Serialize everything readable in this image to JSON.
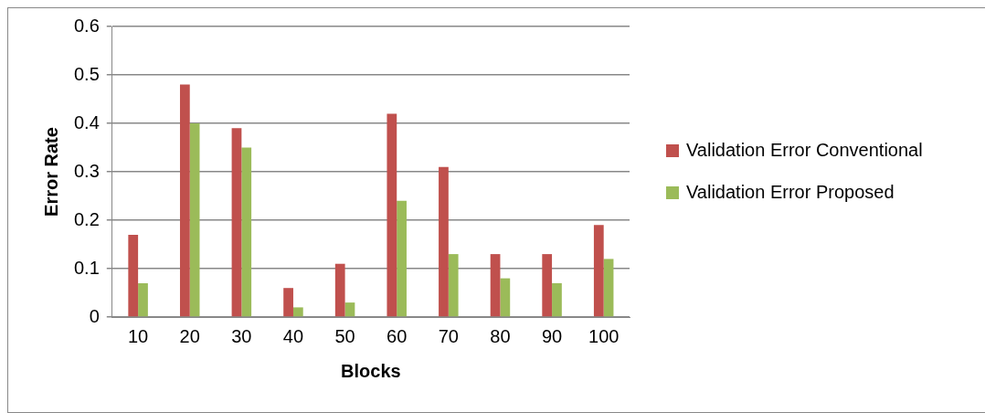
{
  "chart_data": {
    "type": "bar",
    "xlabel": "Blocks",
    "ylabel": "Error Rate",
    "categories": [
      "10",
      "20",
      "30",
      "40",
      "50",
      "60",
      "70",
      "80",
      "90",
      "100"
    ],
    "series": [
      {
        "name": "Validation Error Conventional",
        "color": "#c0504d",
        "values": [
          0.17,
          0.48,
          0.39,
          0.06,
          0.11,
          0.42,
          0.31,
          0.13,
          0.13,
          0.19
        ]
      },
      {
        "name": "Validation Error Proposed",
        "color": "#9bbb59",
        "values": [
          0.07,
          0.4,
          0.35,
          0.02,
          0.03,
          0.24,
          0.13,
          0.08,
          0.07,
          0.12
        ]
      }
    ],
    "ylim": [
      0,
      0.6
    ],
    "yticks": [
      0,
      0.1,
      0.2,
      0.3,
      0.4,
      0.5,
      0.6
    ],
    "grid": "y",
    "legend": "right"
  }
}
